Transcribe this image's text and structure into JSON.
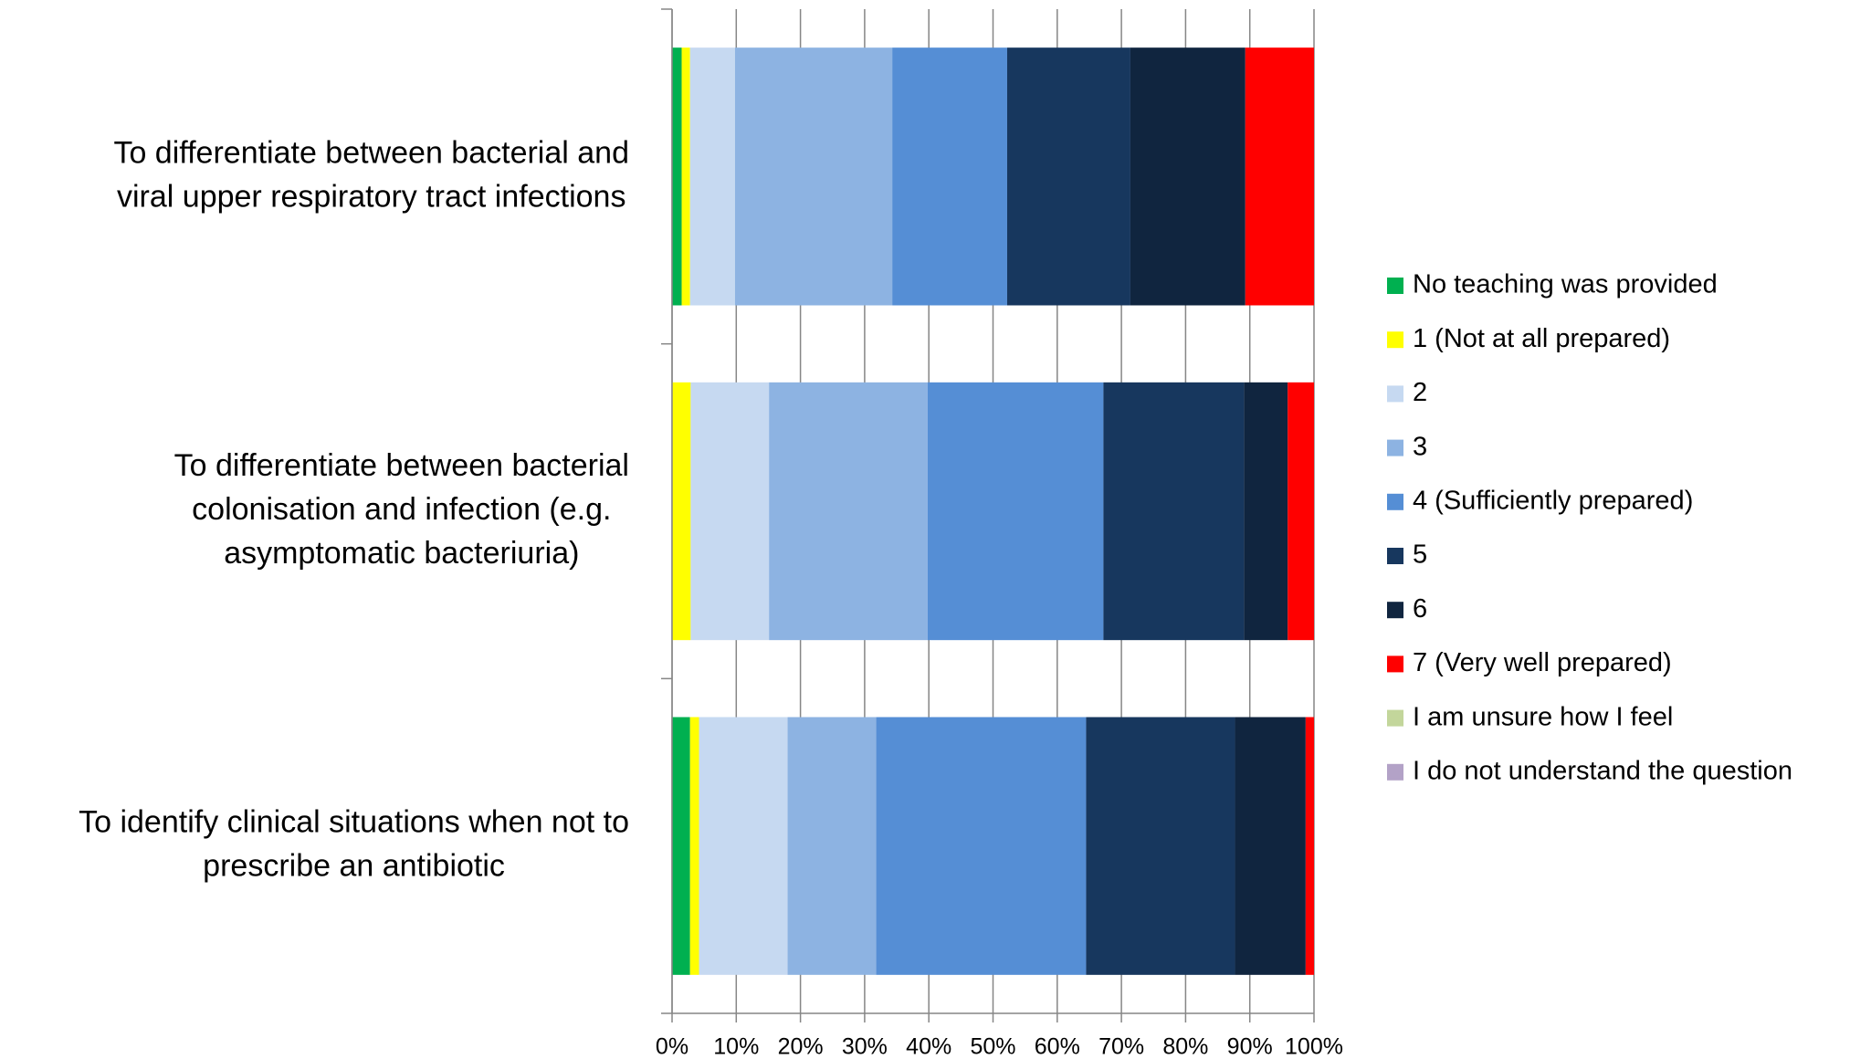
{
  "chart_data": {
    "type": "stacked_barh",
    "categories": [
      [
        "To differentiate between bacterial and",
        "viral upper respiratory tract infections"
      ],
      [
        "To differentiate between bacterial",
        "colonisation and infection (e.g.",
        "asymptomatic bacteriuria)"
      ],
      [
        "To identify clinical situations when not to",
        "prescribe an antibiotic"
      ]
    ],
    "series": [
      {
        "name": "No teaching was provided",
        "color": "#00b050",
        "values": [
          1.5,
          0,
          2.8
        ]
      },
      {
        "name": "1 (Not at all prepared)",
        "color": "#ffff00",
        "values": [
          1.3,
          2.9,
          1.4
        ]
      },
      {
        "name": "2",
        "color": "#c6d9f1",
        "values": [
          7.0,
          12.2,
          13.8
        ]
      },
      {
        "name": "3",
        "color": "#8db3e2",
        "values": [
          24.5,
          24.7,
          13.8
        ]
      },
      {
        "name": "4 (Sufficiently prepared)",
        "color": "#558ed5",
        "values": [
          17.9,
          27.4,
          32.7
        ]
      },
      {
        "name": "5",
        "color": "#17375e",
        "values": [
          19.2,
          21.9,
          23.2
        ]
      },
      {
        "name": "6",
        "color": "#10253f",
        "values": [
          17.9,
          6.8,
          11.0
        ]
      },
      {
        "name": "7 (Very well prepared)",
        "color": "#ff0000",
        "values": [
          10.7,
          4.1,
          1.3
        ]
      },
      {
        "name": "I am unsure how I feel",
        "color": "#c3d69b",
        "values": [
          0,
          0,
          0
        ]
      },
      {
        "name": "I do not understand the question",
        "color": "#b3a2c7",
        "values": [
          0,
          0,
          0
        ]
      }
    ],
    "xlim": [
      0,
      100
    ],
    "xticks": [
      {
        "value": 0,
        "label": "0%"
      },
      {
        "value": 10,
        "label": "10%"
      },
      {
        "value": 20,
        "label": "20%"
      },
      {
        "value": 30,
        "label": "30%"
      },
      {
        "value": 40,
        "label": "40%"
      },
      {
        "value": 50,
        "label": "50%"
      },
      {
        "value": 60,
        "label": "60%"
      },
      {
        "value": 70,
        "label": "70%"
      },
      {
        "value": 80,
        "label": "80%"
      },
      {
        "value": 90,
        "label": "90%"
      },
      {
        "value": 100,
        "label": "100%"
      }
    ],
    "grid": true,
    "legend": "right"
  }
}
